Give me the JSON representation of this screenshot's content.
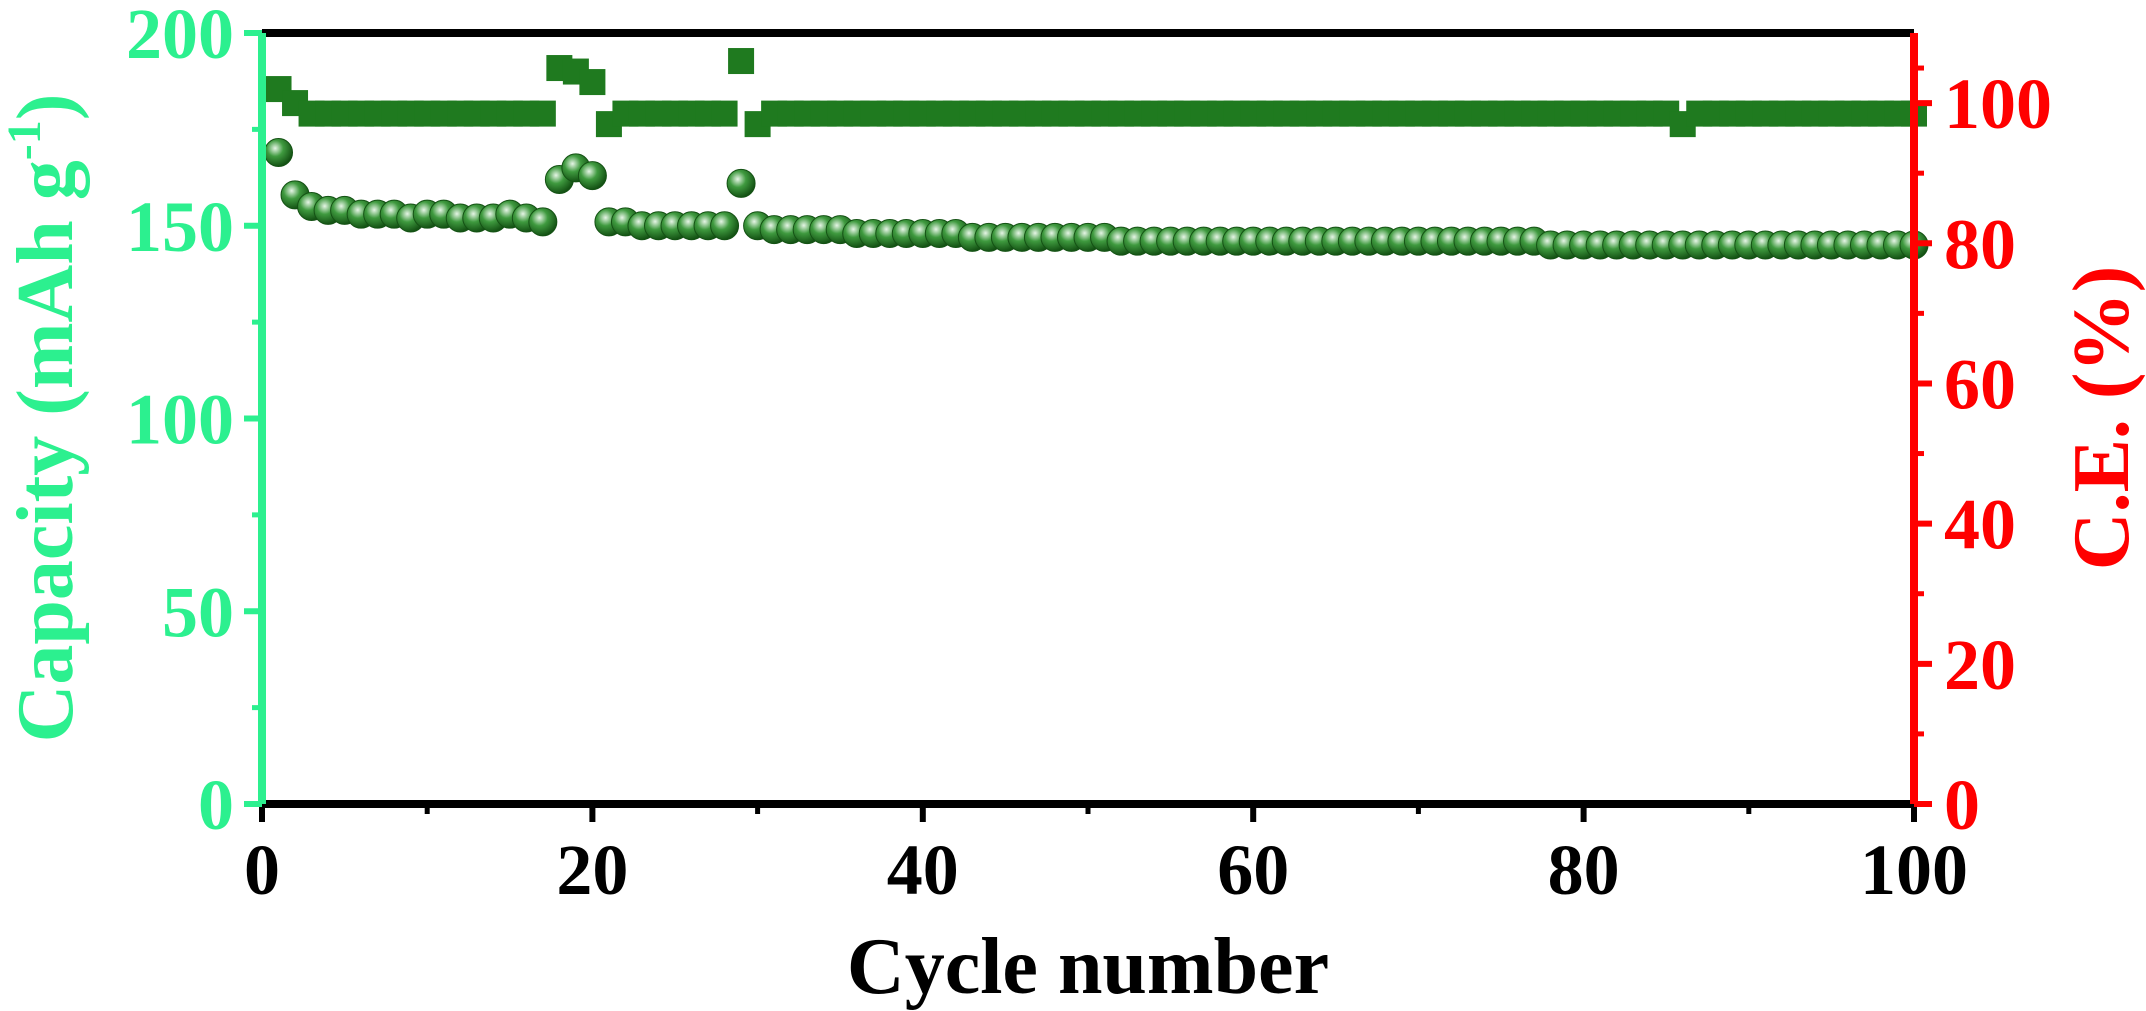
{
  "chart_data": {
    "type": "scatter",
    "xlabel": "Cycle number",
    "ylabel_left": "Capacity (mAh g",
    "ylabel_left_sup": "-1",
    "ylabel_left_close": ")",
    "ylabel_right": "C.E. (%)",
    "xlim": [
      0,
      100
    ],
    "ylim_left": [
      0,
      200
    ],
    "ylim_right": [
      0,
      110
    ],
    "x_ticks": [
      0,
      20,
      40,
      60,
      80,
      100
    ],
    "x_tick_labels": [
      "0",
      "20",
      "40",
      "60",
      "80",
      "100"
    ],
    "y_left_ticks": [
      0,
      50,
      100,
      150,
      200
    ],
    "y_left_tick_labels": [
      "0",
      "50",
      "100",
      "150",
      "200"
    ],
    "y_right_ticks": [
      0,
      20,
      40,
      60,
      80,
      100
    ],
    "y_right_tick_labels": [
      "0",
      "20",
      "40",
      "60",
      "80",
      "100"
    ],
    "colors": {
      "left_axis": "#2cf08f",
      "right_axis": "#ff0000",
      "frame": "#000000",
      "series": "#1f7a1f"
    },
    "series": [
      {
        "name": "Capacity",
        "axis": "left",
        "marker": "circle",
        "x": [
          1,
          2,
          3,
          4,
          5,
          6,
          7,
          8,
          9,
          10,
          11,
          12,
          13,
          14,
          15,
          16,
          17,
          18,
          19,
          20,
          21,
          22,
          23,
          24,
          25,
          26,
          27,
          28,
          29,
          30,
          31,
          32,
          33,
          34,
          35,
          36,
          37,
          38,
          39,
          40,
          41,
          42,
          43,
          44,
          45,
          46,
          47,
          48,
          49,
          50,
          51,
          52,
          53,
          54,
          55,
          56,
          57,
          58,
          59,
          60,
          61,
          62,
          63,
          64,
          65,
          66,
          67,
          68,
          69,
          70,
          71,
          72,
          73,
          74,
          75,
          76,
          77,
          78,
          79,
          80,
          81,
          82,
          83,
          84,
          85,
          86,
          87,
          88,
          89,
          90,
          91,
          92,
          93,
          94,
          95,
          96,
          97,
          98,
          99,
          100
        ],
        "values": [
          169,
          158,
          155,
          154,
          154,
          153,
          153,
          153,
          152,
          153,
          153,
          152,
          152,
          152,
          153,
          152,
          151,
          162,
          165,
          163,
          151,
          151,
          150,
          150,
          150,
          150,
          150,
          150,
          161,
          150,
          149,
          149,
          149,
          149,
          149,
          148,
          148,
          148,
          148,
          148,
          148,
          148,
          147,
          147,
          147,
          147,
          147,
          147,
          147,
          147,
          147,
          146,
          146,
          146,
          146,
          146,
          146,
          146,
          146,
          146,
          146,
          146,
          146,
          146,
          146,
          146,
          146,
          146,
          146,
          146,
          146,
          146,
          146,
          146,
          146,
          146,
          146,
          145,
          145,
          145,
          145,
          145,
          145,
          145,
          145,
          145,
          145,
          145,
          145,
          145,
          145,
          145,
          145,
          145,
          145,
          145,
          145,
          145,
          145,
          145
        ]
      },
      {
        "name": "C.E.",
        "axis": "right",
        "marker": "square",
        "x": [
          1,
          2,
          3,
          4,
          5,
          6,
          7,
          8,
          9,
          10,
          11,
          12,
          13,
          14,
          15,
          16,
          17,
          18,
          19,
          20,
          21,
          22,
          23,
          24,
          25,
          26,
          27,
          28,
          29,
          30,
          31,
          32,
          33,
          34,
          35,
          36,
          37,
          38,
          39,
          40,
          41,
          42,
          43,
          44,
          45,
          46,
          47,
          48,
          49,
          50,
          51,
          52,
          53,
          54,
          55,
          56,
          57,
          58,
          59,
          60,
          61,
          62,
          63,
          64,
          65,
          66,
          67,
          68,
          69,
          70,
          71,
          72,
          73,
          74,
          75,
          76,
          77,
          78,
          79,
          80,
          81,
          82,
          83,
          84,
          85,
          86,
          87,
          88,
          89,
          90,
          91,
          92,
          93,
          94,
          95,
          96,
          97,
          98,
          99,
          100
        ],
        "values": [
          102,
          100,
          98.5,
          98.5,
          98.5,
          98.5,
          98.5,
          98.5,
          98.5,
          98.5,
          98.5,
          98.5,
          98.5,
          98.5,
          98.5,
          98.5,
          98.5,
          105,
          104.5,
          103,
          97,
          98.5,
          98.5,
          98.5,
          98.5,
          98.5,
          98.5,
          98.5,
          106,
          97,
          98.5,
          98.5,
          98.5,
          98.5,
          98.5,
          98.5,
          98.5,
          98.5,
          98.5,
          98.5,
          98.5,
          98.5,
          98.5,
          98.5,
          98.5,
          98.5,
          98.5,
          98.5,
          98.5,
          98.5,
          98.5,
          98.5,
          98.5,
          98.5,
          98.5,
          98.5,
          98.5,
          98.5,
          98.5,
          98.5,
          98.5,
          98.5,
          98.5,
          98.5,
          98.5,
          98.5,
          98.5,
          98.5,
          98.5,
          98.5,
          98.5,
          98.5,
          98.5,
          98.5,
          98.5,
          98.5,
          98.5,
          98.5,
          98.5,
          98.5,
          98.5,
          98.5,
          98.5,
          98.5,
          98.5,
          97,
          98.5,
          98.5,
          98.5,
          98.5,
          98.5,
          98.5,
          98.5,
          98.5,
          98.5,
          98.5,
          98.5,
          98.5,
          98.5,
          98.5
        ]
      }
    ]
  }
}
